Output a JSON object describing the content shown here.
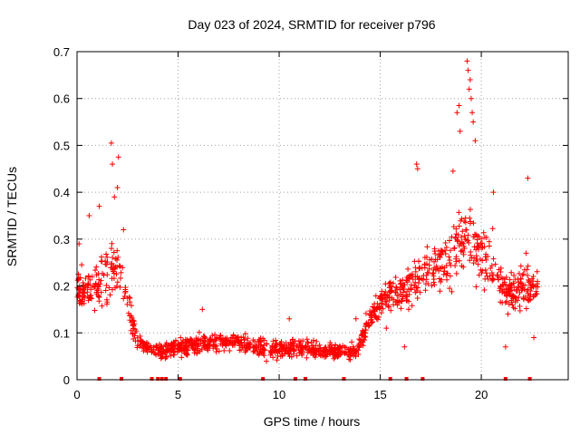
{
  "chart_data": {
    "type": "scatter",
    "title": "Day 023 of 2024, SRMTID for receiver p796",
    "xlabel": "GPS time / hours",
    "ylabel": "SRMTID / TECUs",
    "xlim": [
      0,
      24.3
    ],
    "ylim": [
      0,
      0.7
    ],
    "x_ticks": [
      0,
      5,
      10,
      15,
      20
    ],
    "x_tick_labels": [
      "0",
      "5",
      "10",
      "15",
      "20"
    ],
    "y_ticks": [
      0,
      0.1,
      0.2,
      0.3,
      0.4,
      0.5,
      0.6,
      0.7
    ],
    "y_tick_labels": [
      "0",
      "0.1",
      "0.2",
      "0.3",
      "0.4",
      "0.5",
      "0.6",
      "0.7"
    ],
    "grid": true,
    "marker": "+",
    "color": "#ff0000",
    "series": [
      {
        "name": "SRMTID",
        "envelope_x": [
          0,
          0.5,
          1.0,
          1.5,
          1.8,
          2.2,
          2.6,
          3.0,
          3.5,
          4.0,
          5.0,
          6.0,
          7.0,
          8.0,
          9.0,
          10.0,
          11.0,
          12.0,
          13.0,
          13.8,
          14.3,
          15.0,
          15.6,
          16.2,
          16.8,
          17.5,
          18.2,
          18.8,
          19.3,
          19.6,
          20.0,
          20.5,
          21.0,
          21.6,
          22.2,
          22.8
        ],
        "envelope_mid": [
          0.2,
          0.19,
          0.2,
          0.22,
          0.24,
          0.22,
          0.15,
          0.08,
          0.07,
          0.06,
          0.07,
          0.075,
          0.08,
          0.08,
          0.07,
          0.065,
          0.07,
          0.06,
          0.06,
          0.06,
          0.11,
          0.17,
          0.18,
          0.19,
          0.22,
          0.24,
          0.25,
          0.28,
          0.3,
          0.29,
          0.27,
          0.25,
          0.2,
          0.18,
          0.2,
          0.2
        ],
        "envelope_spread": [
          0.07,
          0.07,
          0.09,
          0.1,
          0.1,
          0.08,
          0.06,
          0.03,
          0.025,
          0.025,
          0.03,
          0.03,
          0.03,
          0.03,
          0.03,
          0.03,
          0.03,
          0.025,
          0.025,
          0.025,
          0.04,
          0.05,
          0.06,
          0.07,
          0.09,
          0.1,
          0.1,
          0.11,
          0.12,
          0.11,
          0.1,
          0.09,
          0.07,
          0.07,
          0.08,
          0.07
        ],
        "points_count": 1400,
        "notable_points": [
          {
            "x": 0.1,
            "y": 0.29
          },
          {
            "x": 0.6,
            "y": 0.35
          },
          {
            "x": 1.1,
            "y": 0.37
          },
          {
            "x": 1.7,
            "y": 0.505
          },
          {
            "x": 1.75,
            "y": 0.46
          },
          {
            "x": 2.05,
            "y": 0.475
          },
          {
            "x": 2.0,
            "y": 0.41
          },
          {
            "x": 1.85,
            "y": 0.39
          },
          {
            "x": 2.3,
            "y": 0.32
          },
          {
            "x": 6.2,
            "y": 0.15
          },
          {
            "x": 10.5,
            "y": 0.13
          },
          {
            "x": 13.8,
            "y": 0.13
          },
          {
            "x": 16.2,
            "y": 0.07
          },
          {
            "x": 19.3,
            "y": 0.68
          },
          {
            "x": 19.35,
            "y": 0.66
          },
          {
            "x": 19.45,
            "y": 0.64
          },
          {
            "x": 19.4,
            "y": 0.62
          },
          {
            "x": 19.5,
            "y": 0.6
          },
          {
            "x": 18.9,
            "y": 0.585
          },
          {
            "x": 18.8,
            "y": 0.57
          },
          {
            "x": 19.55,
            "y": 0.57
          },
          {
            "x": 19.6,
            "y": 0.55
          },
          {
            "x": 18.95,
            "y": 0.53
          },
          {
            "x": 19.7,
            "y": 0.51
          },
          {
            "x": 16.8,
            "y": 0.46
          },
          {
            "x": 16.85,
            "y": 0.45
          },
          {
            "x": 22.3,
            "y": 0.43
          },
          {
            "x": 20.6,
            "y": 0.4
          },
          {
            "x": 18.6,
            "y": 0.445
          },
          {
            "x": 21.2,
            "y": 0.07
          },
          {
            "x": 15.3,
            "y": 0.11
          },
          {
            "x": 22.6,
            "y": 0.09
          }
        ]
      }
    ],
    "baseline_marks_x": [
      1.1,
      2.2,
      3.7,
      4.0,
      4.2,
      4.4,
      5.1,
      9.2,
      10.8,
      11.3,
      13.2,
      15.5,
      16.3,
      17.1,
      21.2,
      22.4
    ]
  }
}
